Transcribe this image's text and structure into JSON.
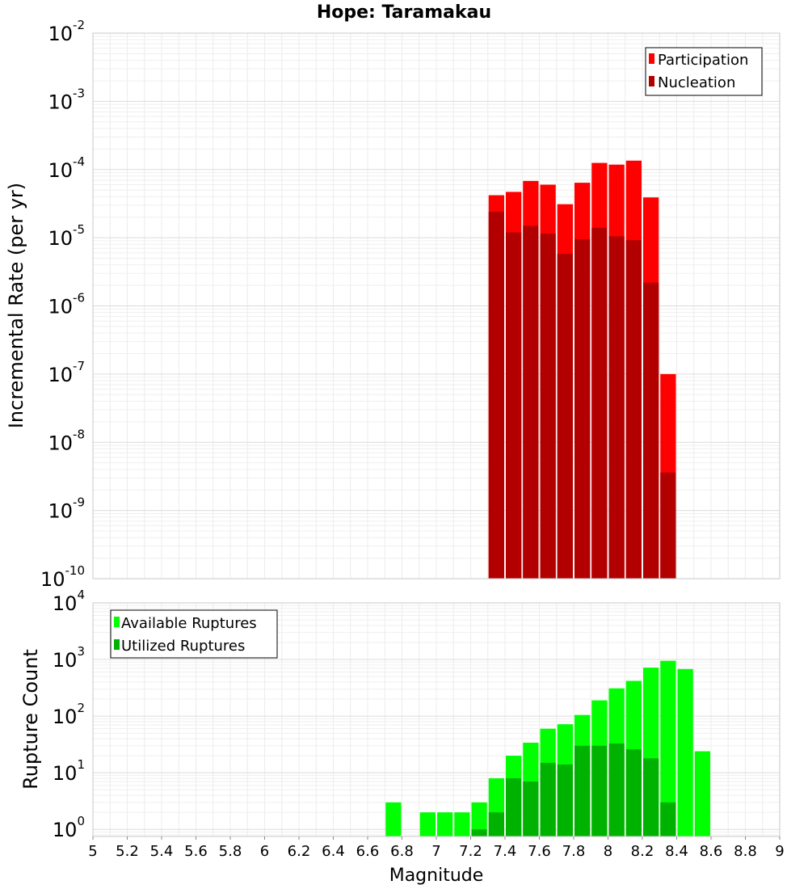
{
  "chart_data": [
    {
      "type": "bar",
      "title": "Hope: Taramakau",
      "xlabel": "",
      "ylabel": "Incremental Rate (per yr)",
      "yscale": "log",
      "ylim": [
        1e-10,
        0.01
      ],
      "xlim": [
        5,
        9
      ],
      "y_ticks": [
        {
          "base": "10",
          "exp": "-10"
        },
        {
          "base": "10",
          "exp": "-9"
        },
        {
          "base": "10",
          "exp": "-8"
        },
        {
          "base": "10",
          "exp": "-7"
        },
        {
          "base": "10",
          "exp": "-6"
        },
        {
          "base": "10",
          "exp": "-5"
        },
        {
          "base": "10",
          "exp": "-4"
        },
        {
          "base": "10",
          "exp": "-3"
        },
        {
          "base": "10",
          "exp": "-2"
        }
      ],
      "legend_position": "top-right",
      "series": [
        {
          "name": "Participation",
          "color": "#ff0000",
          "x": [
            7.35,
            7.45,
            7.55,
            7.65,
            7.75,
            7.85,
            7.95,
            8.05,
            8.15,
            8.25,
            8.35
          ],
          "values": [
            4.2e-05,
            4.7e-05,
            6.8e-05,
            6e-05,
            3.1e-05,
            6.4e-05,
            0.000125,
            0.000118,
            0.000135,
            3.9e-05,
            1e-07
          ]
        },
        {
          "name": "Nucleation",
          "color": "#b20000",
          "x": [
            7.35,
            7.45,
            7.55,
            7.65,
            7.75,
            7.85,
            7.95,
            8.05,
            8.15,
            8.25,
            8.35
          ],
          "values": [
            2.4e-05,
            1.2e-05,
            1.5e-05,
            1.15e-05,
            5.8e-06,
            9.5e-06,
            1.4e-05,
            1.05e-05,
            9.2e-06,
            2.2e-06,
            3.6e-09
          ]
        }
      ]
    },
    {
      "type": "bar",
      "title": "",
      "xlabel": "Magnitude",
      "ylabel": "Rupture Count",
      "yscale": "log",
      "ylim": [
        0.75,
        10000
      ],
      "xlim": [
        5,
        9
      ],
      "x_tick_labels": [
        "5",
        "5.2",
        "5.4",
        "5.6",
        "5.8",
        "6",
        "6.2",
        "6.4",
        "6.6",
        "6.8",
        "7",
        "7.2",
        "7.4",
        "7.6",
        "7.8",
        "8",
        "8.2",
        "8.4",
        "8.6",
        "8.8",
        "9"
      ],
      "y_ticks": [
        {
          "base": "10",
          "exp": "0"
        },
        {
          "base": "10",
          "exp": "1"
        },
        {
          "base": "10",
          "exp": "2"
        },
        {
          "base": "10",
          "exp": "3"
        },
        {
          "base": "10",
          "exp": "4"
        }
      ],
      "legend_position": "top-left",
      "series": [
        {
          "name": "Available Ruptures",
          "color": "#00ff00",
          "x": [
            6.75,
            6.95,
            7.05,
            7.15,
            7.25,
            7.35,
            7.45,
            7.55,
            7.65,
            7.75,
            7.85,
            7.95,
            8.05,
            8.15,
            8.25,
            8.35,
            8.45,
            8.55
          ],
          "values": [
            3,
            2,
            2,
            2,
            3,
            8,
            20,
            34,
            60,
            72,
            105,
            190,
            310,
            420,
            720,
            950,
            680,
            24
          ]
        },
        {
          "name": "Utilized Ruptures",
          "color": "#00b200",
          "x": [
            7.25,
            7.35,
            7.45,
            7.55,
            7.65,
            7.75,
            7.85,
            7.95,
            8.05,
            8.15,
            8.25,
            8.35
          ],
          "values": [
            1,
            2,
            8,
            7,
            15,
            14,
            30,
            30,
            33,
            26,
            18,
            3
          ]
        }
      ]
    }
  ]
}
